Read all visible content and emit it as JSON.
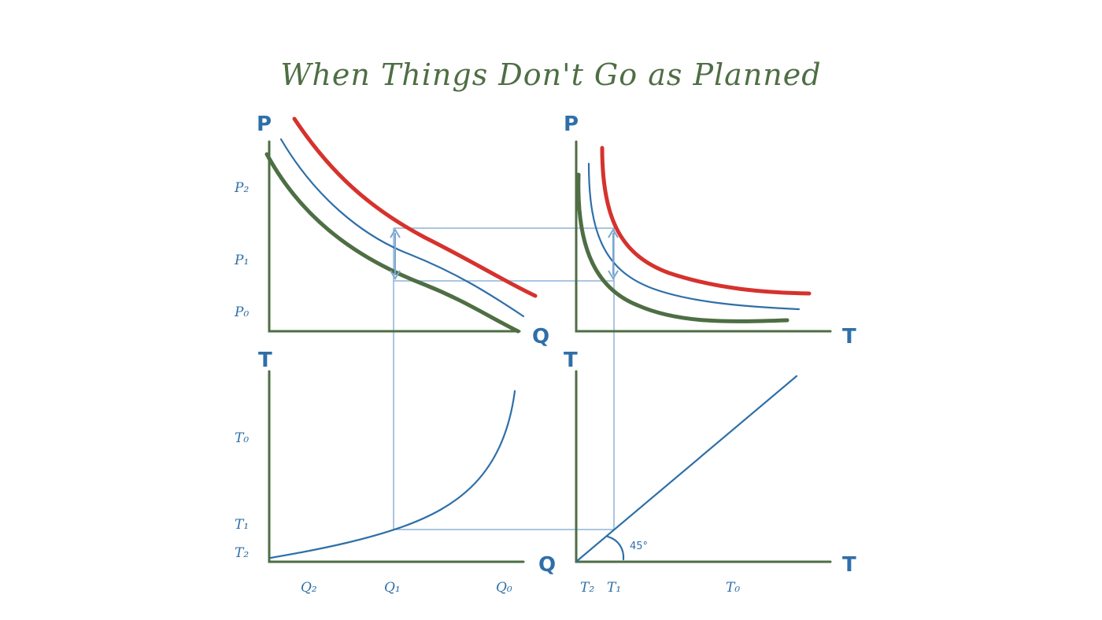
{
  "title": "When Things Don't Go as Planned",
  "colors": {
    "demand_low": "#4e6e44",
    "demand_mid": "#2f6fa8",
    "demand_high": "#d6322d",
    "guide_lines": "#8fb4d8",
    "axes": "#4e6e44",
    "labels": "#2f6fa8"
  },
  "panels": {
    "top_left": {
      "y_axis": "P",
      "x_axis": "Q",
      "y_ticks": [
        "P₂",
        "P₁",
        "P₀"
      ]
    },
    "top_right": {
      "y_axis": "P",
      "x_axis": "T"
    },
    "bottom_left": {
      "y_axis": "T",
      "x_axis": "Q",
      "y_ticks": [
        "T₀",
        "T₁",
        "T₂"
      ],
      "x_ticks": [
        "Q₂",
        "Q₁",
        "Q₀"
      ]
    },
    "bottom_right": {
      "y_axis": "T",
      "x_axis": "T",
      "x_ticks": [
        "T₂",
        "T₁",
        "T₀"
      ],
      "angle_label": "45°"
    }
  }
}
